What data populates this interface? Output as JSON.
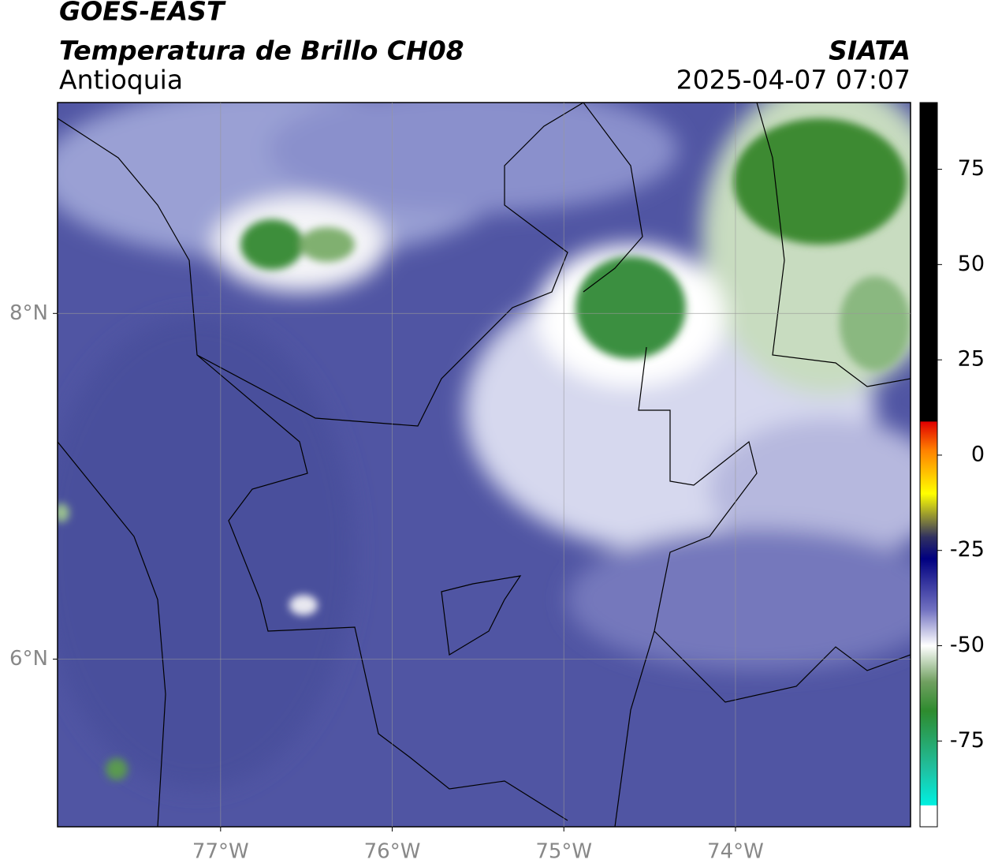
{
  "header": {
    "satellite": "GOES-EAST",
    "title": "Temperatura de Brillo CH08",
    "region": "Antioquia",
    "source": "SIATA",
    "datetime": "2025-04-07 07:07"
  },
  "map": {
    "xlim": [
      -77.95,
      -72.98
    ],
    "ylim": [
      5.03,
      9.22
    ],
    "xticks": [
      {
        "value": -77,
        "label": "77°W"
      },
      {
        "value": -76,
        "label": "76°W"
      },
      {
        "value": -75,
        "label": "75°W"
      },
      {
        "value": -74,
        "label": "74°W"
      }
    ],
    "yticks": [
      {
        "value": 8,
        "label": "8°N"
      },
      {
        "value": 6,
        "label": "6°N"
      }
    ],
    "grid": true
  },
  "colorbar": {
    "lim": [
      -97.5,
      92.5
    ],
    "ticks": [
      75,
      50,
      25,
      0,
      -25,
      -50,
      -75
    ]
  }
}
